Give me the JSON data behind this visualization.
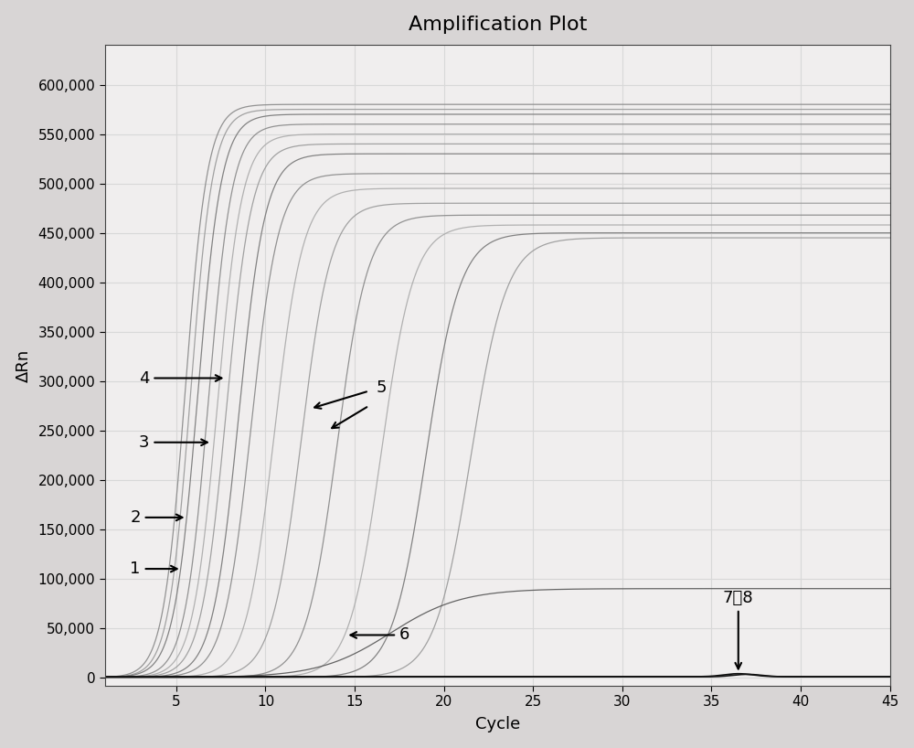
{
  "title": "Amplification Plot",
  "xlabel": "Cycle",
  "ylabel": "ΔRn",
  "xlim": [
    1,
    45
  ],
  "ylim": [
    -8000,
    640000
  ],
  "yticks": [
    0,
    50000,
    100000,
    150000,
    200000,
    250000,
    300000,
    350000,
    400000,
    450000,
    500000,
    550000,
    600000
  ],
  "xticks": [
    5,
    10,
    15,
    20,
    25,
    30,
    35,
    40,
    45
  ],
  "background_color": "#f8f8f8",
  "plot_bg_color": "#f0eeee",
  "grid_color": "#d8d8d8",
  "curve_color_dark": "#555555",
  "curve_color_light": "#aaaaaa",
  "flat_curve_color": "#222222",
  "curves_positive": [
    {
      "midpoint": 5.5,
      "rate": 1.6,
      "plateau": 580000,
      "color": "#888888"
    },
    {
      "midpoint": 5.8,
      "rate": 1.6,
      "plateau": 575000,
      "color": "#999999"
    },
    {
      "midpoint": 6.2,
      "rate": 1.5,
      "plateau": 570000,
      "color": "#777777"
    },
    {
      "midpoint": 6.8,
      "rate": 1.5,
      "plateau": 560000,
      "color": "#888888"
    },
    {
      "midpoint": 7.3,
      "rate": 1.45,
      "plateau": 550000,
      "color": "#aaaaaa"
    },
    {
      "midpoint": 7.8,
      "rate": 1.4,
      "plateau": 540000,
      "color": "#999999"
    },
    {
      "midpoint": 8.5,
      "rate": 1.35,
      "plateau": 530000,
      "color": "#777777"
    },
    {
      "midpoint": 9.2,
      "rate": 1.3,
      "plateau": 510000,
      "color": "#888888"
    },
    {
      "midpoint": 10.5,
      "rate": 1.25,
      "plateau": 495000,
      "color": "#aaaaaa"
    },
    {
      "midpoint": 12.0,
      "rate": 1.2,
      "plateau": 480000,
      "color": "#999999"
    },
    {
      "midpoint": 14.0,
      "rate": 1.15,
      "plateau": 468000,
      "color": "#888888"
    },
    {
      "midpoint": 16.5,
      "rate": 1.1,
      "plateau": 458000,
      "color": "#aaaaaa"
    },
    {
      "midpoint": 19.0,
      "rate": 1.05,
      "plateau": 450000,
      "color": "#777777"
    },
    {
      "midpoint": 21.5,
      "rate": 1.0,
      "plateau": 445000,
      "color": "#999999"
    }
  ],
  "curve6": {
    "midpoint": 17.0,
    "rate": 0.5,
    "plateau": 90000,
    "color": "#555555"
  },
  "curves_negative": [
    {
      "plateau": 3000,
      "color": "#111111"
    },
    {
      "plateau": 2500,
      "color": "#111111"
    }
  ],
  "figsize": [
    10.0,
    8.18
  ],
  "dpi": 100
}
